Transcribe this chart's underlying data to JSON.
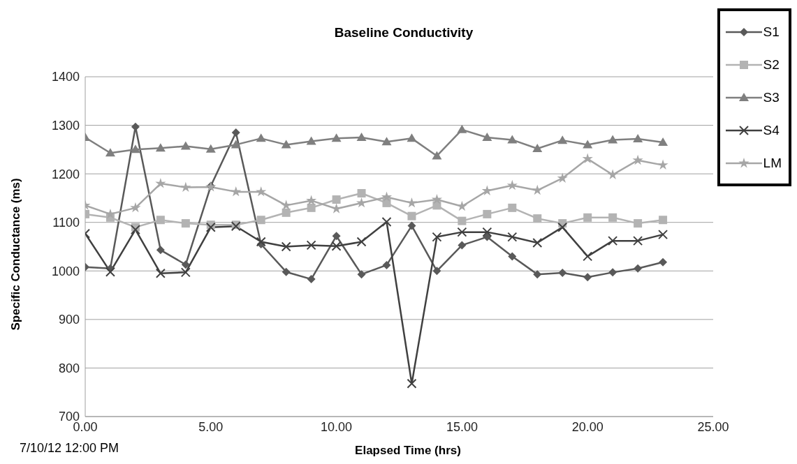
{
  "chart_data": {
    "type": "line",
    "title": "Baseline Conductivity",
    "xlabel": "Elapsed Time (hrs)",
    "ylabel": "Specific Conductance (ms)",
    "annotations": [
      "7/10/12 12:00 PM"
    ],
    "x": [
      0,
      1,
      2,
      3,
      4,
      5,
      6,
      7,
      8,
      9,
      10,
      11,
      12,
      13,
      14,
      15,
      16,
      17,
      18,
      19,
      20,
      21,
      22,
      23
    ],
    "xlim": [
      0,
      25
    ],
    "xticks": [
      {
        "value": 0,
        "label": "0.00"
      },
      {
        "value": 5,
        "label": "5.00"
      },
      {
        "value": 10,
        "label": "10.00"
      },
      {
        "value": 15,
        "label": "15.00"
      },
      {
        "value": 20,
        "label": "20.00"
      },
      {
        "value": 25,
        "label": "25.00"
      }
    ],
    "ylim": [
      700,
      1400
    ],
    "yticks": [
      700,
      800,
      900,
      1000,
      1100,
      1200,
      1300,
      1400
    ],
    "grid": "y",
    "legend": "top right",
    "series": [
      {
        "name": "S1",
        "color": "#595959",
        "marker": "diamond",
        "values": [
          1008,
          1005,
          1297,
          1043,
          1013,
          1175,
          1285,
          1055,
          998,
          983,
          1072,
          993,
          1012,
          1093,
          1000,
          1053,
          1070,
          1030,
          993,
          996,
          987,
          997,
          1005,
          1018
        ]
      },
      {
        "name": "S2",
        "color": "#b3b3b3",
        "marker": "square",
        "values": [
          1117,
          1110,
          1090,
          1105,
          1098,
          1095,
          1095,
          1105,
          1120,
          1130,
          1147,
          1160,
          1140,
          1113,
          1135,
          1103,
          1117,
          1130,
          1108,
          1098,
          1110,
          1110,
          1098,
          1105
        ]
      },
      {
        "name": "S3",
        "color": "#7f7f7f",
        "marker": "triangle",
        "values": [
          1275,
          1243,
          1250,
          1253,
          1257,
          1251,
          1260,
          1273,
          1260,
          1267,
          1273,
          1275,
          1266,
          1273,
          1237,
          1291,
          1275,
          1270,
          1252,
          1269,
          1260,
          1270,
          1272,
          1265
        ]
      },
      {
        "name": "S4",
        "color": "#404040",
        "marker": "cross",
        "values": [
          1077,
          998,
          1085,
          995,
          997,
          1090,
          1092,
          1060,
          1050,
          1053,
          1051,
          1060,
          1101,
          768,
          1070,
          1080,
          1080,
          1070,
          1058,
          1090,
          1030,
          1062,
          1062,
          1075
        ]
      },
      {
        "name": "LM",
        "color": "#a6a6a6",
        "marker": "star",
        "values": [
          1135,
          1117,
          1130,
          1180,
          1172,
          1173,
          1163,
          1163,
          1135,
          1145,
          1128,
          1140,
          1152,
          1140,
          1147,
          1133,
          1165,
          1176,
          1166,
          1191,
          1231,
          1198,
          1228,
          1218
        ]
      }
    ]
  }
}
